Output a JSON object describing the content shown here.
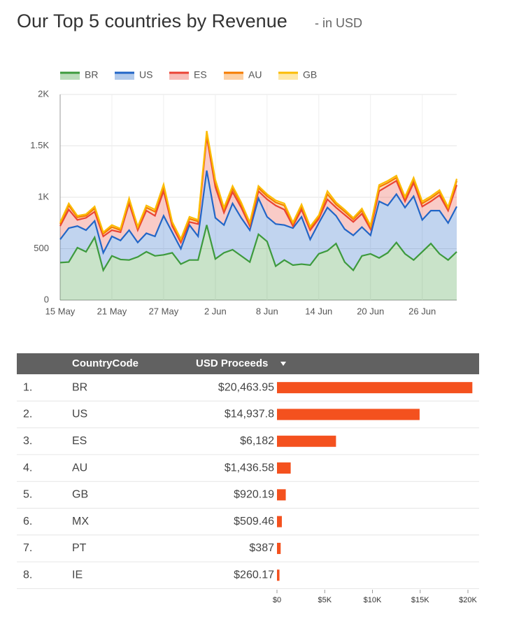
{
  "chart_data": [
    {
      "type": "area",
      "title": "Our Top 5 countries by Revenue",
      "subtitle": "- in USD",
      "categories": [
        "15 May",
        null,
        null,
        null,
        null,
        null,
        "21 May",
        null,
        null,
        null,
        null,
        null,
        "27 May",
        null,
        null,
        null,
        null,
        null,
        "2 Jun",
        null,
        null,
        null,
        null,
        null,
        "8 Jun",
        null,
        null,
        null,
        null,
        null,
        "14 Jun",
        null,
        null,
        null,
        null,
        null,
        "20 Jun",
        null,
        null,
        null,
        null,
        null,
        "26 Jun",
        null,
        null,
        null,
        null
      ],
      "series": [
        {
          "name": "BR",
          "color": "#3d9a3d",
          "values": [
            365,
            370,
            510,
            470,
            610,
            290,
            430,
            395,
            390,
            420,
            470,
            430,
            440,
            460,
            350,
            390,
            390,
            730,
            400,
            460,
            490,
            430,
            370,
            640,
            570,
            330,
            390,
            340,
            350,
            340,
            450,
            480,
            550,
            370,
            290,
            430,
            450,
            410,
            460,
            560,
            450,
            390,
            470,
            550,
            450,
            390,
            470
          ]
        },
        {
          "name": "US",
          "color": "#2266c7",
          "values": [
            225,
            330,
            210,
            210,
            160,
            170,
            190,
            185,
            290,
            140,
            180,
            190,
            380,
            200,
            150,
            340,
            230,
            530,
            400,
            270,
            450,
            370,
            310,
            350,
            240,
            410,
            340,
            360,
            460,
            250,
            300,
            420,
            270,
            320,
            340,
            280,
            180,
            550,
            460,
            470,
            450,
            620,
            310,
            320,
            420,
            360,
            440
          ]
        },
        {
          "name": "ES",
          "color": "#ea4335",
          "values": [
            130,
            180,
            60,
            120,
            90,
            160,
            60,
            80,
            260,
            120,
            220,
            200,
            240,
            60,
            60,
            30,
            120,
            330,
            300,
            120,
            110,
            100,
            40,
            70,
            170,
            180,
            150,
            20,
            70,
            90,
            40,
            80,
            80,
            140,
            130,
            130,
            60,
            100,
            190,
            130,
            60,
            130,
            130,
            90,
            150,
            120,
            210
          ]
        },
        {
          "name": "AU",
          "color": "#f57c00",
          "values": [
            20,
            40,
            25,
            20,
            30,
            25,
            30,
            20,
            30,
            20,
            30,
            40,
            40,
            25,
            20,
            30,
            25,
            30,
            40,
            30,
            35,
            30,
            20,
            30,
            30,
            30,
            40,
            20,
            30,
            20,
            20,
            50,
            30,
            30,
            25,
            30,
            20,
            40,
            30,
            30,
            30,
            30,
            30,
            30,
            30,
            20,
            40
          ]
        },
        {
          "name": "GB",
          "color": "#fbbc05",
          "values": [
            15,
            20,
            15,
            15,
            20,
            15,
            20,
            15,
            20,
            15,
            20,
            20,
            25,
            15,
            15,
            20,
            15,
            25,
            30,
            20,
            25,
            20,
            15,
            20,
            20,
            20,
            20,
            15,
            20,
            15,
            15,
            30,
            20,
            20,
            15,
            20,
            15,
            20,
            20,
            20,
            15,
            20,
            20,
            20,
            20,
            15,
            20
          ]
        }
      ],
      "ylim": [
        0,
        2000
      ],
      "yticks": [
        0,
        500,
        {
          "value": 1000,
          "label": "1K"
        },
        {
          "value": 1500,
          "label": "1.5K"
        },
        {
          "value": 2000,
          "label": "2K"
        }
      ],
      "grid": true
    },
    {
      "type": "bar",
      "columns": [
        "CountryCode",
        "USD Proceeds"
      ],
      "ranks": [
        "1.",
        "2.",
        "3.",
        "4.",
        "5.",
        "6.",
        "7.",
        "8."
      ],
      "categories": [
        "BR",
        "US",
        "ES",
        "AU",
        "GB",
        "MX",
        "PT",
        "IE"
      ],
      "values": [
        20463.95,
        14937.8,
        6182,
        1436.58,
        920.19,
        509.46,
        387,
        260.17
      ],
      "value_labels": [
        "$20,463.95",
        "$14,937.8",
        "$6,182",
        "$1,436.58",
        "$920.19",
        "$509.46",
        "$387",
        "$260.17"
      ],
      "color": "#f4511e",
      "xlim": [
        0,
        20000
      ],
      "xticks": [
        {
          "value": 0,
          "label": "$0"
        },
        {
          "value": 5000,
          "label": "$5K"
        },
        {
          "value": 10000,
          "label": "$10K"
        },
        {
          "value": 15000,
          "label": "$15K"
        },
        {
          "value": 20000,
          "label": "$20K"
        }
      ]
    }
  ]
}
